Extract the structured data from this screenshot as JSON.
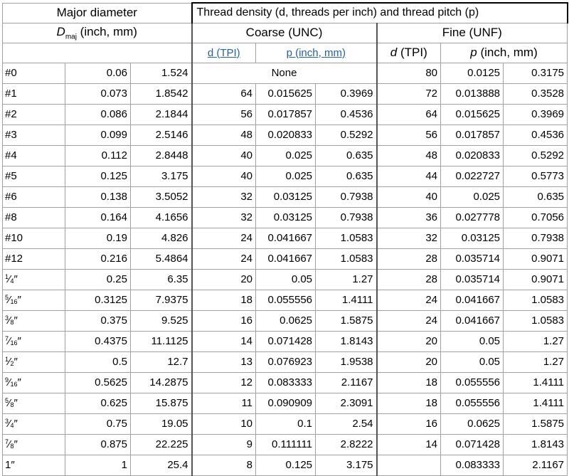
{
  "header": {
    "major_diameter": "Major diameter",
    "d_symbol": "D",
    "d_subscript": "maj",
    "d_units": " (inch, mm)",
    "thread_density": "Thread density (d, threads per inch) and thread pitch (p)",
    "coarse": "Coarse (UNC)",
    "fine": "Fine (UNF)",
    "coarse_tpi": "d (TPI)",
    "coarse_pitch": "p (inch, mm)",
    "fine_tpi_symbol": "d",
    "fine_tpi_units": " (TPI)",
    "fine_pitch_symbol": "p",
    "fine_pitch_units": " (inch, mm)"
  },
  "rows": [
    {
      "size": "#0",
      "inch": "0.06",
      "mm": "1.524",
      "c_tpi": "",
      "c_pin": "",
      "c_pmm": "",
      "coarse_none": "None",
      "f_tpi": "80",
      "f_pin": "0.0125",
      "f_pmm": "0.3175"
    },
    {
      "size": "#1",
      "inch": "0.073",
      "mm": "1.8542",
      "c_tpi": "64",
      "c_pin": "0.015625",
      "c_pmm": "0.3969",
      "f_tpi": "72",
      "f_pin": "0.013888",
      "f_pmm": "0.3528"
    },
    {
      "size": "#2",
      "inch": "0.086",
      "mm": "2.1844",
      "c_tpi": "56",
      "c_pin": "0.017857",
      "c_pmm": "0.4536",
      "f_tpi": "64",
      "f_pin": "0.015625",
      "f_pmm": "0.3969"
    },
    {
      "size": "#3",
      "inch": "0.099",
      "mm": "2.5146",
      "c_tpi": "48",
      "c_pin": "0.020833",
      "c_pmm": "0.5292",
      "f_tpi": "56",
      "f_pin": "0.017857",
      "f_pmm": "0.4536"
    },
    {
      "size": "#4",
      "inch": "0.112",
      "mm": "2.8448",
      "c_tpi": "40",
      "c_pin": "0.025",
      "c_pmm": "0.635",
      "f_tpi": "48",
      "f_pin": "0.020833",
      "f_pmm": "0.5292"
    },
    {
      "size": "#5",
      "inch": "0.125",
      "mm": "3.175",
      "c_tpi": "40",
      "c_pin": "0.025",
      "c_pmm": "0.635",
      "f_tpi": "44",
      "f_pin": "0.022727",
      "f_pmm": "0.5773"
    },
    {
      "size": "#6",
      "inch": "0.138",
      "mm": "3.5052",
      "c_tpi": "32",
      "c_pin": "0.03125",
      "c_pmm": "0.7938",
      "f_tpi": "40",
      "f_pin": "0.025",
      "f_pmm": "0.635"
    },
    {
      "size": "#8",
      "inch": "0.164",
      "mm": "4.1656",
      "c_tpi": "32",
      "c_pin": "0.03125",
      "c_pmm": "0.7938",
      "f_tpi": "36",
      "f_pin": "0.027778",
      "f_pmm": "0.7056"
    },
    {
      "size": "#10",
      "inch": "0.19",
      "mm": "4.826",
      "c_tpi": "24",
      "c_pin": "0.041667",
      "c_pmm": "1.0583",
      "f_tpi": "32",
      "f_pin": "0.03125",
      "f_pmm": "0.7938"
    },
    {
      "size": "#12",
      "inch": "0.216",
      "mm": "5.4864",
      "c_tpi": "24",
      "c_pin": "0.041667",
      "c_pmm": "1.0583",
      "f_tpi": "28",
      "f_pin": "0.035714",
      "f_pmm": "0.9071"
    },
    {
      "size_num": "1",
      "size_den": "4",
      "inch": "0.25",
      "mm": "6.35",
      "c_tpi": "20",
      "c_pin": "0.05",
      "c_pmm": "1.27",
      "f_tpi": "28",
      "f_pin": "0.035714",
      "f_pmm": "0.9071"
    },
    {
      "size_num": "5",
      "size_den": "16",
      "inch": "0.3125",
      "mm": "7.9375",
      "c_tpi": "18",
      "c_pin": "0.055556",
      "c_pmm": "1.4111",
      "f_tpi": "24",
      "f_pin": "0.041667",
      "f_pmm": "1.0583"
    },
    {
      "size_num": "3",
      "size_den": "8",
      "inch": "0.375",
      "mm": "9.525",
      "c_tpi": "16",
      "c_pin": "0.0625",
      "c_pmm": "1.5875",
      "f_tpi": "24",
      "f_pin": "0.041667",
      "f_pmm": "1.0583"
    },
    {
      "size_num": "7",
      "size_den": "16",
      "inch": "0.4375",
      "mm": "11.1125",
      "c_tpi": "14",
      "c_pin": "0.071428",
      "c_pmm": "1.8143",
      "f_tpi": "20",
      "f_pin": "0.05",
      "f_pmm": "1.27"
    },
    {
      "size_num": "1",
      "size_den": "2",
      "inch": "0.5",
      "mm": "12.7",
      "c_tpi": "13",
      "c_pin": "0.076923",
      "c_pmm": "1.9538",
      "f_tpi": "20",
      "f_pin": "0.05",
      "f_pmm": "1.27"
    },
    {
      "size_num": "9",
      "size_den": "16",
      "inch": "0.5625",
      "mm": "14.2875",
      "c_tpi": "12",
      "c_pin": "0.083333",
      "c_pmm": "2.1167",
      "f_tpi": "18",
      "f_pin": "0.055556",
      "f_pmm": "1.4111"
    },
    {
      "size_num": "5",
      "size_den": "8",
      "inch": "0.625",
      "mm": "15.875",
      "c_tpi": "11",
      "c_pin": "0.090909",
      "c_pmm": "2.3091",
      "f_tpi": "18",
      "f_pin": "0.055556",
      "f_pmm": "1.4111"
    },
    {
      "size_num": "3",
      "size_den": "4",
      "inch": "0.75",
      "mm": "19.05",
      "c_tpi": "10",
      "c_pin": "0.1",
      "c_pmm": "2.54",
      "f_tpi": "16",
      "f_pin": "0.0625",
      "f_pmm": "1.5875"
    },
    {
      "size_num": "7",
      "size_den": "8",
      "inch": "0.875",
      "mm": "22.225",
      "c_tpi": "9",
      "c_pin": "0.111111",
      "c_pmm": "2.8222",
      "f_tpi": "14",
      "f_pin": "0.071428",
      "f_pmm": "1.8143"
    },
    {
      "size_num": "1",
      "size_den": "",
      "size_suffix": "″",
      "inch": "1",
      "mm": "25.4",
      "c_tpi": "8",
      "c_pin": "0.125",
      "c_pmm": "3.175",
      "f_tpi": "",
      "f_pin": "0.083333",
      "f_pmm": "2.1167"
    }
  ]
}
